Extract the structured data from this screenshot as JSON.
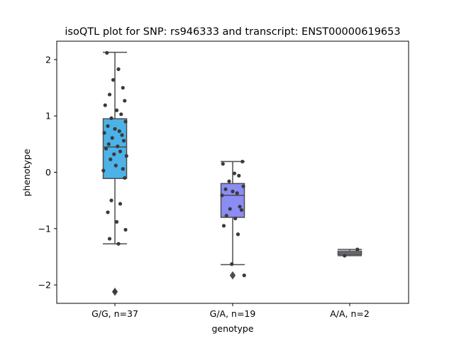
{
  "chart_data": {
    "type": "box",
    "title": "isoQTL plot for SNP: rs946333 and transcript: ENST00000619653",
    "xlabel": "genotype",
    "ylabel": "phenotype",
    "ylim": [
      -2.32,
      2.32
    ],
    "yticks": [
      -2,
      -1,
      0,
      1,
      2
    ],
    "ytick_labels": [
      "−2",
      "−1",
      "0",
      "1",
      "2"
    ],
    "grid": false,
    "categories": [
      "G/G, n=37",
      "G/A, n=19",
      "A/A, n=2"
    ],
    "boxes": [
      {
        "category": "G/G, n=37",
        "color": "#4cb2e8",
        "q1": -0.11,
        "median": 0.45,
        "q3": 0.95,
        "whisker_low": -1.27,
        "whisker_high": 2.13,
        "outliers": [
          -2.12
        ],
        "points": [
          2.12,
          1.83,
          1.64,
          1.5,
          1.38,
          1.27,
          1.19,
          1.1,
          1.03,
          0.96,
          0.9,
          0.82,
          0.77,
          0.73,
          0.7,
          0.66,
          0.61,
          0.56,
          0.5,
          0.46,
          0.42,
          0.37,
          0.32,
          0.29,
          0.23,
          0.12,
          0.06,
          0.03,
          -0.1,
          -0.5,
          -0.56,
          -0.71,
          -0.88,
          -1.02,
          -1.18,
          -1.27,
          -2.12
        ]
      },
      {
        "category": "G/A, n=19",
        "color": "#8c8cf5",
        "q1": -0.8,
        "median": -0.41,
        "q3": -0.2,
        "whisker_low": -1.64,
        "whisker_high": 0.19,
        "outliers": [
          -1.83
        ],
        "points": [
          0.19,
          0.15,
          -0.02,
          -0.06,
          -0.16,
          -0.25,
          -0.3,
          -0.34,
          -0.37,
          -0.41,
          -0.61,
          -0.65,
          -0.67,
          -0.77,
          -0.82,
          -0.95,
          -1.1,
          -1.63,
          -1.83
        ]
      },
      {
        "category": "A/A, n=2",
        "color": "#9090a8",
        "q1": -1.46,
        "median": -1.43,
        "q3": -1.4,
        "whisker_low": -1.48,
        "whisker_high": -1.37,
        "outliers": [],
        "points": [
          -1.37,
          -1.48
        ]
      }
    ]
  }
}
